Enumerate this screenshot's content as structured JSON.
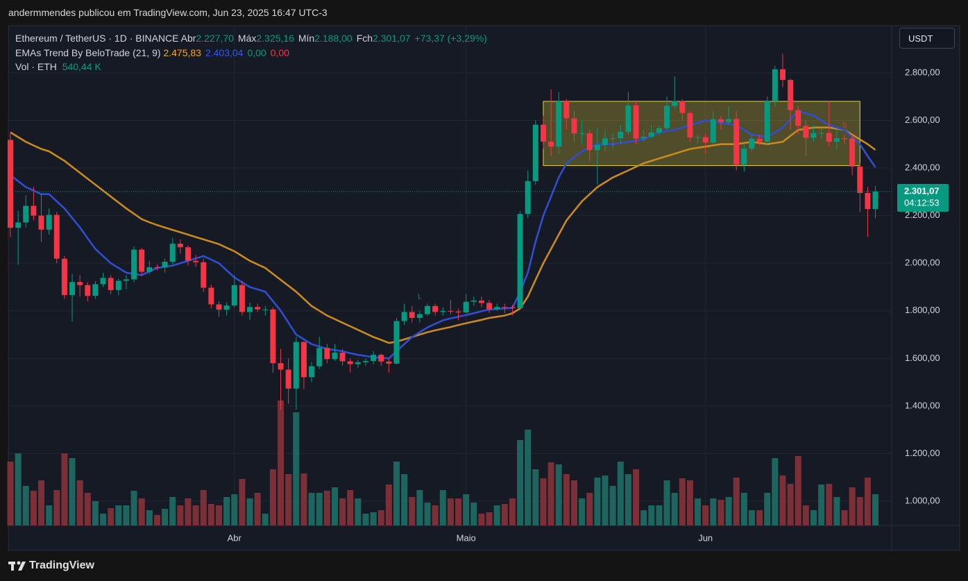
{
  "header": {
    "byline": "andermmendes publicou em TradingView.com, Jun 23, 2025 16:47 UTC-3",
    "brand": "TradingView",
    "currency": "USDT"
  },
  "legend": {
    "symbol": "Ethereum / TetherUS · 1D · BINANCE",
    "ohlc": [
      {
        "label": "Abr",
        "value": "2.227,70"
      },
      {
        "label": "Máx",
        "value": "2.325,16"
      },
      {
        "label": "Mín",
        "value": "2.188,00"
      },
      {
        "label": "Fch",
        "value": "2.301,07"
      }
    ],
    "change": "+73,37 (+3,29%)",
    "indicator": "EMAs Trend By BeloTrade (21, 9)",
    "indicator_values": [
      {
        "text": "2.475,83",
        "color": "#f5a623"
      },
      {
        "text": "2.403,04",
        "color": "#2f5bea"
      },
      {
        "text": "0,00",
        "color": "#089981"
      },
      {
        "text": "0,00",
        "color": "#f23645"
      }
    ],
    "volume": "Vol · ETH",
    "volume_value": "540,44 K"
  },
  "chart_data": {
    "type": "candlestick",
    "categories": [
      null,
      null,
      null,
      null,
      null,
      null,
      null,
      null,
      null,
      null,
      null,
      null,
      null,
      null,
      null,
      null,
      null,
      null,
      null,
      null,
      null,
      null,
      null,
      null,
      null,
      null,
      null,
      null,
      null,
      "Abr",
      null,
      null,
      null,
      null,
      null,
      null,
      null,
      null,
      null,
      null,
      null,
      null,
      null,
      null,
      null,
      null,
      null,
      null,
      null,
      null,
      null,
      null,
      null,
      null,
      null,
      null,
      null,
      null,
      null,
      "Maio",
      null,
      null,
      null,
      null,
      null,
      null,
      null,
      null,
      null,
      null,
      null,
      null,
      null,
      null,
      null,
      null,
      null,
      null,
      null,
      null,
      null,
      null,
      null,
      null,
      null,
      null,
      null,
      null,
      null,
      null,
      "Jun",
      null,
      null,
      null,
      null,
      null,
      null,
      null,
      null,
      null,
      null,
      null,
      null,
      null,
      null,
      null,
      null,
      null,
      null,
      null,
      null,
      null,
      null
    ],
    "open": [
      2518,
      2149,
      2171,
      2241,
      2200,
      2141,
      2203,
      2019,
      1866,
      1921,
      1908,
      1863,
      1912,
      1938,
      1887,
      1926,
      1932,
      2057,
      1964,
      1983,
      1982,
      2006,
      2082,
      2067,
      2010,
      2004,
      1897,
      1827,
      1805,
      1822,
      1908,
      1795,
      1816,
      1806,
      1806,
      1580,
      1553,
      1473,
      1669,
      1521,
      1567,
      1644,
      1597,
      1624,
      1588,
      1576,
      1584,
      1589,
      1615,
      1587,
      1578,
      1757,
      1795,
      1770,
      1786,
      1820,
      1795,
      1799,
      1797,
      1793,
      1838,
      1843,
      1833,
      1806,
      1816,
      1815,
      1811,
      2207,
      2345,
      2582,
      2511,
      2490,
      2680,
      2609,
      2545,
      2546,
      2475,
      2497,
      2524,
      2525,
      2552,
      2663,
      2524,
      2531,
      2549,
      2567,
      2661,
      2681,
      2631,
      2528,
      2530,
      2507,
      2605,
      2593,
      2606,
      2414,
      2481,
      2523,
      2510,
      2680,
      2815,
      2770,
      2643,
      2577,
      2527,
      2547,
      2547,
      2510,
      2525,
      2524,
      2406,
      2295,
      2227.7
    ],
    "high": [
      2550,
      2220,
      2285,
      2320,
      2290,
      2230,
      2215,
      2030,
      1955,
      1950,
      1920,
      1925,
      1960,
      1950,
      1935,
      1950,
      2070,
      2065,
      2010,
      1995,
      2020,
      2105,
      2100,
      2075,
      2035,
      2020,
      1910,
      1840,
      1835,
      1950,
      1925,
      1835,
      1830,
      1820,
      1815,
      1640,
      1600,
      1690,
      1672,
      1585,
      1690,
      1660,
      1660,
      1640,
      1600,
      1595,
      1600,
      1630,
      1620,
      1600,
      1770,
      1830,
      1820,
      1800,
      1830,
      1830,
      1815,
      1845,
      1810,
      1870,
      1860,
      1860,
      1845,
      1830,
      1830,
      1825,
      2220,
      2390,
      2600,
      2620,
      2730,
      2720,
      2690,
      2640,
      2600,
      2560,
      2570,
      2560,
      2545,
      2580,
      2720,
      2680,
      2560,
      2580,
      2580,
      2700,
      2785,
      2690,
      2640,
      2540,
      2545,
      2640,
      2620,
      2660,
      2640,
      2500,
      2540,
      2540,
      2700,
      2830,
      2880,
      2775,
      2660,
      2600,
      2580,
      2570,
      2680,
      2560,
      2540,
      2540,
      2420,
      2320,
      2325.16
    ],
    "low": [
      2110,
      1993,
      2150,
      2180,
      2090,
      2120,
      2000,
      1850,
      1755,
      1860,
      1840,
      1850,
      1900,
      1870,
      1865,
      1890,
      1920,
      1945,
      1955,
      1970,
      1960,
      1995,
      2040,
      1990,
      1985,
      1880,
      1810,
      1775,
      1780,
      1815,
      1780,
      1760,
      1795,
      1780,
      1540,
      1385,
      1410,
      1385,
      1470,
      1500,
      1555,
      1580,
      1590,
      1570,
      1540,
      1560,
      1570,
      1575,
      1570,
      1540,
      1575,
      1740,
      1750,
      1750,
      1780,
      1780,
      1780,
      1785,
      1760,
      1790,
      1820,
      1815,
      1790,
      1800,
      1790,
      1780,
      1808,
      2190,
      2330,
      2480,
      2450,
      2460,
      2560,
      2510,
      2500,
      2430,
      2330,
      2470,
      2480,
      2500,
      2540,
      2500,
      2510,
      2525,
      2540,
      2560,
      2650,
      2600,
      2510,
      2505,
      2460,
      2500,
      2560,
      2580,
      2390,
      2385,
      2470,
      2495,
      2500,
      2660,
      2740,
      2560,
      2540,
      2450,
      2510,
      2520,
      2490,
      2480,
      2500,
      2370,
      2215,
      2110,
      2188
    ],
    "close": [
      2149,
      2171,
      2241,
      2200,
      2141,
      2203,
      2019,
      1866,
      1921,
      1908,
      1863,
      1912,
      1938,
      1887,
      1926,
      1932,
      2057,
      1964,
      1983,
      1982,
      2006,
      2082,
      2067,
      2010,
      2004,
      1897,
      1827,
      1805,
      1822,
      1908,
      1795,
      1816,
      1806,
      1806,
      1580,
      1553,
      1473,
      1669,
      1521,
      1567,
      1644,
      1597,
      1624,
      1588,
      1576,
      1584,
      1589,
      1615,
      1587,
      1578,
      1757,
      1795,
      1770,
      1786,
      1820,
      1795,
      1799,
      1797,
      1793,
      1838,
      1843,
      1833,
      1806,
      1816,
      1815,
      1811,
      2207,
      2345,
      2582,
      2511,
      2490,
      2680,
      2609,
      2545,
      2546,
      2475,
      2497,
      2524,
      2525,
      2552,
      2663,
      2524,
      2531,
      2549,
      2567,
      2661,
      2681,
      2631,
      2528,
      2530,
      2507,
      2605,
      2593,
      2606,
      2414,
      2481,
      2523,
      2510,
      2680,
      2815,
      2770,
      2643,
      2577,
      2527,
      2547,
      2547,
      2510,
      2525,
      2524,
      2406,
      2295,
      2227.7,
      2301.07
    ],
    "volume": [
      1104,
      1248,
      684,
      600,
      780,
      348,
      612,
      1248,
      1164,
      780,
      564,
      420,
      204,
      300,
      348,
      348,
      600,
      468,
      264,
      180,
      288,
      492,
      348,
      468,
      348,
      612,
      372,
      348,
      492,
      540,
      804,
      468,
      564,
      204,
      972,
      2160,
      888,
      1956,
      900,
      564,
      564,
      600,
      660,
      468,
      612,
      468,
      204,
      228,
      264,
      708,
      1104,
      888,
      492,
      612,
      396,
      348,
      612,
      468,
      468,
      540,
      396,
      204,
      228,
      348,
      372,
      468,
      1476,
      1656,
      972,
      816,
      1092,
      1056,
      888,
      780,
      468,
      564,
      828,
      864,
      684,
      1104,
      888,
      972,
      264,
      348,
      348,
      780,
      564,
      816,
      780,
      468,
      348,
      468,
      444,
      492,
      828,
      564,
      264,
      264,
      564,
      1164,
      864,
      720,
      1200,
      348,
      264,
      708,
      720,
      492,
      264,
      660,
      492,
      828,
      540.44
    ],
    "ema_lines": [
      {
        "color": "#c98a1e",
        "values": [
          2550,
          2530,
          2510,
          2495,
          2480,
          2470,
          2450,
          2430,
          2405,
          2380,
          2355,
          2330,
          2305,
          2280,
          2255,
          2230,
          2208,
          2185,
          2172,
          2160,
          2150,
          2140,
          2130,
          2120,
          2110,
          2100,
          2090,
          2080,
          2065,
          2050,
          2030,
          2010,
          1995,
          1980,
          1955,
          1930,
          1905,
          1880,
          1850,
          1820,
          1800,
          1780,
          1765,
          1750,
          1735,
          1720,
          1705,
          1690,
          1678,
          1665,
          1670,
          1680,
          1690,
          1700,
          1710,
          1718,
          1725,
          1732,
          1740,
          1748,
          1755,
          1762,
          1770,
          1775,
          1780,
          1790,
          1810,
          1860,
          1930,
          2000,
          2060,
          2120,
          2180,
          2220,
          2260,
          2290,
          2320,
          2340,
          2360,
          2375,
          2390,
          2405,
          2420,
          2430,
          2440,
          2450,
          2460,
          2470,
          2480,
          2485,
          2490,
          2495,
          2500,
          2500,
          2500,
          2505,
          2510,
          2505,
          2500,
          2505,
          2510,
          2535,
          2560,
          2565,
          2570,
          2570,
          2570,
          2565,
          2560,
          2540,
          2520,
          2500,
          2475.83
        ]
      },
      {
        "color": "#2f4fd0",
        "values": [
          2370,
          2345,
          2320,
          2305,
          2290,
          2290,
          2260,
          2230,
          2190,
          2150,
          2105,
          2060,
          2030,
          2000,
          1980,
          1960,
          1955,
          1950,
          1965,
          1980,
          1985,
          1990,
          2000,
          2010,
          2020,
          2030,
          2015,
          2000,
          1970,
          1940,
          1920,
          1900,
          1890,
          1880,
          1840,
          1800,
          1750,
          1700,
          1680,
          1660,
          1650,
          1640,
          1635,
          1630,
          1622,
          1615,
          1610,
          1605,
          1602,
          1600,
          1630,
          1660,
          1690,
          1710,
          1730,
          1745,
          1760,
          1768,
          1775,
          1782,
          1790,
          1798,
          1805,
          1808,
          1810,
          1812,
          1880,
          1960,
          2090,
          2200,
          2280,
          2360,
          2420,
          2445,
          2470,
          2485,
          2500,
          2500,
          2500,
          2505,
          2510,
          2515,
          2520,
          2535,
          2550,
          2555,
          2560,
          2570,
          2580,
          2590,
          2600,
          2595,
          2590,
          2585,
          2580,
          2560,
          2540,
          2535,
          2530,
          2550,
          2570,
          2605,
          2640,
          2630,
          2620,
          2600,
          2580,
          2570,
          2560,
          2530,
          2500,
          2450,
          2403.04
        ]
      }
    ],
    "range_box": {
      "from_index": 69,
      "to_index": 110,
      "low": 2410,
      "high": 2680,
      "color": "#e8d43a"
    },
    "annotations": [
      {
        "text": "L",
        "index": 53,
        "price": 1858,
        "color": "#089981"
      },
      {
        "text": "S",
        "index": 108,
        "price": 2578,
        "color": "#f23645"
      }
    ],
    "last_price_label": "2.301,07",
    "countdown": "04:12:53",
    "up_color": "#089981",
    "down_color": "#f23645",
    "volume_up_color": "#1f655f",
    "volume_down_color": "#7b2f36",
    "ylim": [
      898,
      2998
    ],
    "yticks": [
      {
        "value": 1000,
        "label": "1.000,00"
      },
      {
        "value": 1200,
        "label": "1.200,00"
      },
      {
        "value": 1400,
        "label": "1.400,00"
      },
      {
        "value": 1600,
        "label": "1.600,00"
      },
      {
        "value": 1800,
        "label": "1.800,00"
      },
      {
        "value": 2000,
        "label": "2.000,00"
      },
      {
        "value": 2200,
        "label": "2.200,00"
      },
      {
        "value": 2400,
        "label": "2.400,00"
      },
      {
        "value": 2600,
        "label": "2.600,00"
      },
      {
        "value": 2800,
        "label": "2.800,00"
      }
    ],
    "grid": true
  }
}
